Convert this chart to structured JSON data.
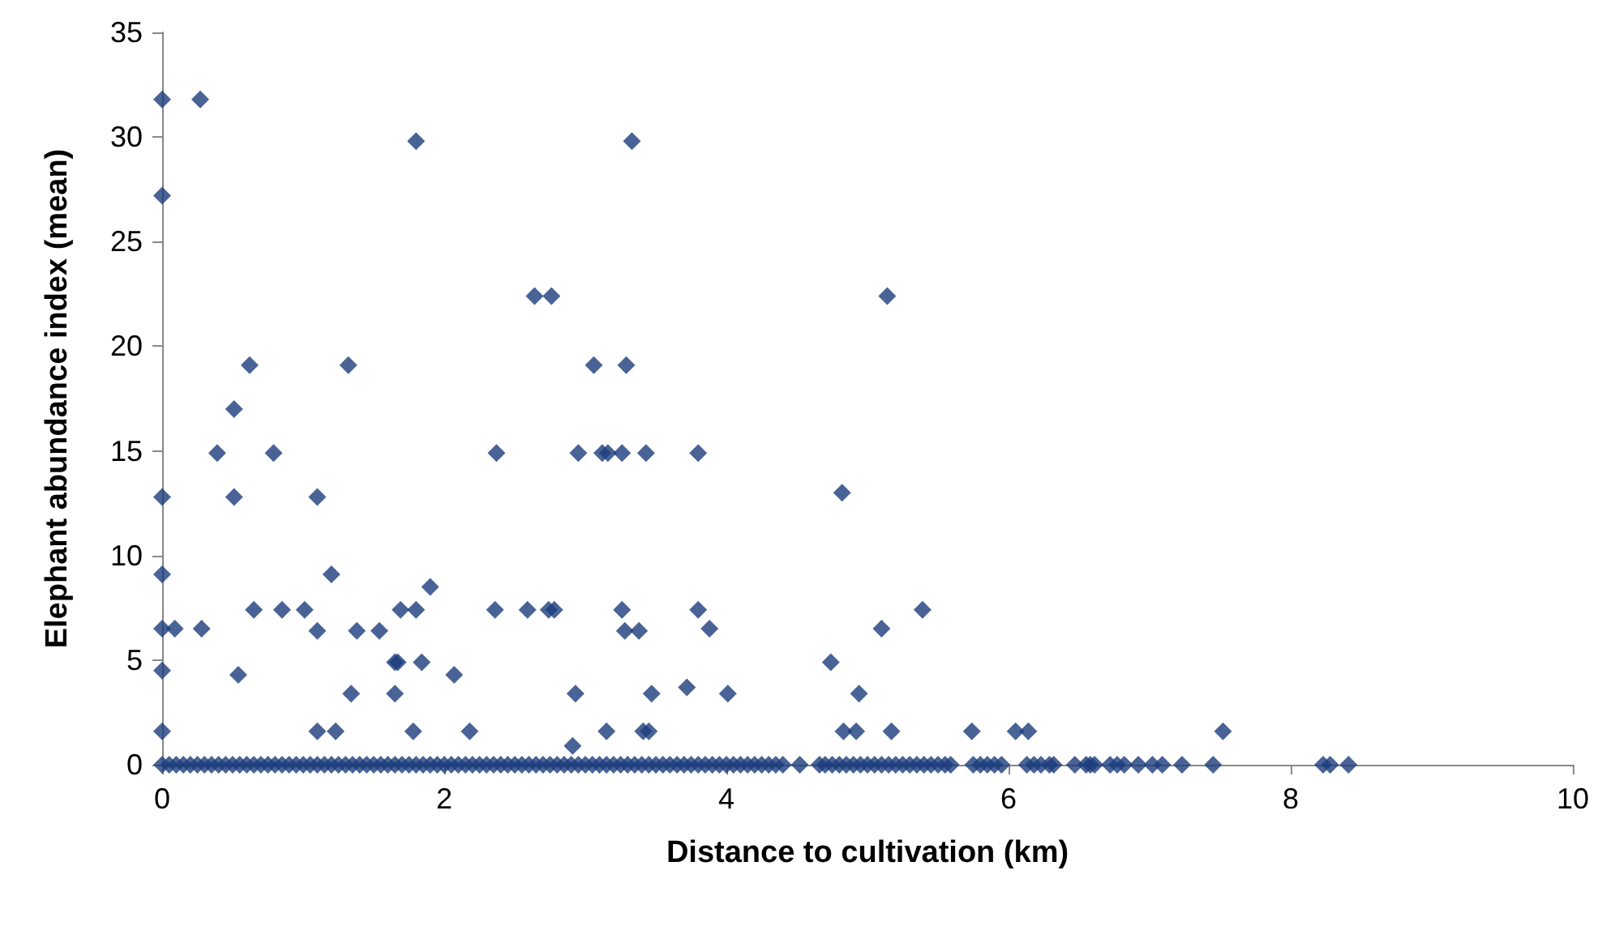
{
  "chart_data": {
    "type": "scatter",
    "xlabel": "Distance to cultivation (km)",
    "ylabel": "Elephant abundance index (mean)",
    "xlim": [
      0,
      10
    ],
    "xticks": [
      0,
      2,
      4,
      6,
      8,
      10
    ],
    "ylim": [
      0,
      35
    ],
    "yticks": [
      0,
      5,
      10,
      15,
      20,
      25,
      30,
      35
    ],
    "grid": false,
    "marker": "diamond",
    "series": [
      {
        "color": "#1b3c7c",
        "x": [
          0,
          0.27,
          0,
          1.8,
          3.33,
          2.64,
          2.76,
          5.14,
          0.62,
          1.32,
          3.06,
          3.29,
          0.51,
          0.39,
          0.79,
          2.37,
          2.95,
          3.12,
          3.16,
          3.26,
          3.43,
          3.8,
          0,
          0.51,
          1.1,
          4.82,
          0,
          1.2,
          1.9,
          0.65,
          0.85,
          1.01,
          1.69,
          1.8,
          2.36,
          2.59,
          2.74,
          2.78,
          3.26,
          3.8,
          5.39,
          0,
          0.09,
          0.28,
          1.1,
          1.38,
          1.54,
          3.28,
          3.38,
          3.88,
          5.1,
          0,
          0.54,
          1.65,
          1.67,
          1.84,
          2.07,
          4.74,
          3.72,
          1.34,
          1.65,
          2.93,
          3.47,
          4.01,
          4.94,
          0,
          1.1,
          1.23,
          1.78,
          2.18,
          3.15,
          3.41,
          3.45,
          4.83,
          4.92,
          5.17,
          5.74,
          6.05,
          6.14,
          7.52,
          2.91,
          0,
          0.05,
          0.1,
          0.15,
          0.2,
          0.25,
          0.3,
          0.35,
          0.4,
          0.45,
          0.5,
          0.55,
          0.6,
          0.65,
          0.7,
          0.75,
          0.8,
          0.85,
          0.9,
          0.95,
          1,
          1.05,
          1.1,
          1.15,
          1.2,
          1.25,
          1.3,
          1.35,
          1.4,
          1.45,
          1.5,
          1.55,
          1.6,
          1.65,
          1.7,
          1.75,
          1.8,
          1.85,
          1.9,
          1.95,
          2,
          2.05,
          2.1,
          2.15,
          2.2,
          2.25,
          2.3,
          2.35,
          2.4,
          2.45,
          2.5,
          2.55,
          2.6,
          2.65,
          2.7,
          2.75,
          2.8,
          2.85,
          2.9,
          2.95,
          3,
          3.05,
          3.1,
          3.15,
          3.2,
          3.25,
          3.3,
          3.35,
          3.4,
          3.45,
          3.5,
          3.55,
          3.6,
          3.65,
          3.7,
          3.75,
          3.8,
          3.85,
          3.9,
          3.95,
          4,
          4.05,
          4.1,
          4.15,
          4.2,
          4.25,
          4.3,
          4.35,
          4.4,
          4.52,
          4.66,
          4.7,
          4.75,
          4.8,
          4.85,
          4.9,
          4.95,
          5,
          5.05,
          5.1,
          5.15,
          5.2,
          5.25,
          5.3,
          5.35,
          5.4,
          5.45,
          5.5,
          5.55,
          5.59,
          5.75,
          5.8,
          5.85,
          5.9,
          5.95,
          6.13,
          6.18,
          6.23,
          6.29,
          6.32,
          6.47,
          6.55,
          6.58,
          6.61,
          6.72,
          6.77,
          6.82,
          6.92,
          7.02,
          7.09,
          7.23,
          7.45,
          8.23,
          8.28,
          8.41
        ],
        "values": [
          31.8,
          31.8,
          27.2,
          29.8,
          29.8,
          22.4,
          22.4,
          22.4,
          19.1,
          19.1,
          19.1,
          19.1,
          17,
          14.9,
          14.9,
          14.9,
          14.9,
          14.9,
          14.9,
          14.9,
          14.9,
          14.9,
          12.8,
          12.8,
          12.8,
          13,
          9.1,
          9.1,
          8.5,
          7.4,
          7.4,
          7.4,
          7.4,
          7.4,
          7.4,
          7.4,
          7.4,
          7.4,
          7.4,
          7.4,
          7.4,
          6.5,
          6.5,
          6.5,
          6.4,
          6.4,
          6.4,
          6.4,
          6.4,
          6.5,
          6.5,
          4.5,
          4.3,
          4.9,
          4.9,
          4.9,
          4.3,
          4.9,
          3.7,
          3.4,
          3.4,
          3.4,
          3.4,
          3.4,
          3.4,
          1.6,
          1.6,
          1.6,
          1.6,
          1.6,
          1.6,
          1.6,
          1.6,
          1.6,
          1.6,
          1.6,
          1.6,
          1.6,
          1.6,
          1.6,
          0.9,
          0,
          0,
          0,
          0,
          0,
          0,
          0,
          0,
          0,
          0,
          0,
          0,
          0,
          0,
          0,
          0,
          0,
          0,
          0,
          0,
          0,
          0,
          0,
          0,
          0,
          0,
          0,
          0,
          0,
          0,
          0,
          0,
          0,
          0,
          0,
          0,
          0,
          0,
          0,
          0,
          0,
          0,
          0,
          0,
          0,
          0,
          0,
          0,
          0,
          0,
          0,
          0,
          0,
          0,
          0,
          0,
          0,
          0,
          0,
          0,
          0,
          0,
          0,
          0,
          0,
          0,
          0,
          0,
          0,
          0,
          0,
          0,
          0,
          0,
          0,
          0,
          0,
          0,
          0,
          0,
          0,
          0,
          0,
          0,
          0,
          0,
          0,
          0,
          0,
          0,
          0,
          0,
          0,
          0,
          0,
          0,
          0,
          0,
          0,
          0,
          0,
          0,
          0,
          0,
          0,
          0,
          0,
          0,
          0,
          0,
          0,
          0,
          0,
          0,
          0,
          0,
          0,
          0,
          0,
          0,
          0,
          0,
          0,
          0,
          0,
          0,
          0,
          0,
          0,
          0,
          0,
          0,
          0,
          0,
          0
        ]
      }
    ]
  }
}
